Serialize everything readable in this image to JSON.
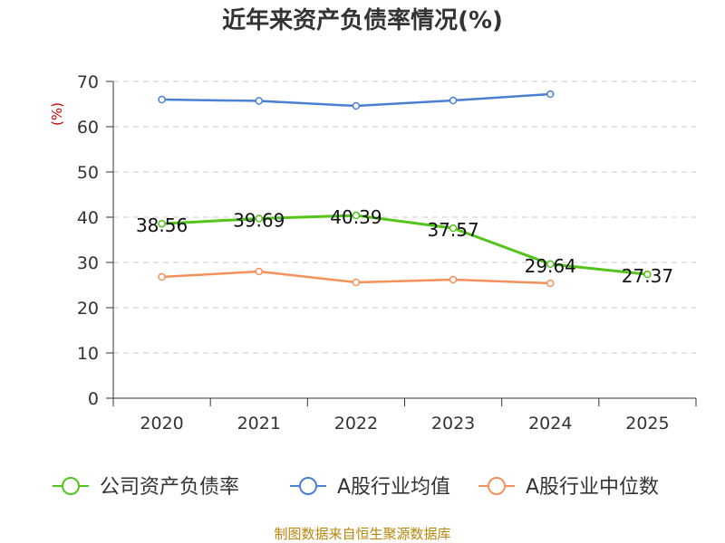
{
  "chart_data": {
    "type": "line",
    "title": "近年来资产负债率情况(%)",
    "ylabel": "(%)",
    "xlabel": "",
    "categories": [
      "2020",
      "2021",
      "2022",
      "2023",
      "2024",
      "2025"
    ],
    "ylim": [
      0,
      70
    ],
    "yticks": [
      0,
      10,
      20,
      30,
      40,
      50,
      60,
      70
    ],
    "grid": true,
    "legend_position": "bottom",
    "series": [
      {
        "name": "公司资产负债率",
        "color": "#52c41a",
        "values": [
          38.56,
          39.69,
          40.39,
          37.57,
          29.64,
          27.37
        ],
        "data_labels": true
      },
      {
        "name": "A股行业均值",
        "color": "#4a7fd4",
        "values": [
          66.0,
          65.7,
          64.6,
          65.8,
          67.2,
          null
        ],
        "data_labels": false
      },
      {
        "name": "A股行业中位数",
        "color": "#f4905a",
        "values": [
          26.8,
          28.0,
          25.6,
          26.2,
          25.4,
          null
        ],
        "data_labels": false
      }
    ]
  },
  "source": "制图数据来自恒生聚源数据库"
}
